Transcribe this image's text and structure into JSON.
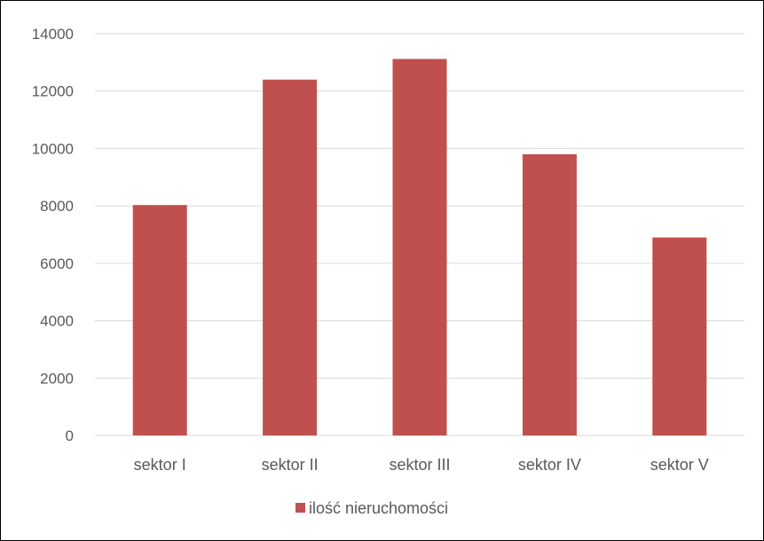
{
  "chart_data": {
    "type": "bar",
    "categories": [
      "sektor I",
      "sektor II",
      "sektor III",
      "sektor IV",
      "sektor V"
    ],
    "series": [
      {
        "name": "ilość nieruchomości",
        "values": [
          8030,
          12400,
          13120,
          9800,
          6900
        ]
      }
    ],
    "yticks": [
      "0",
      "2000",
      "4000",
      "6000",
      "8000",
      "10000",
      "12000",
      "14000"
    ],
    "ylim": [
      0,
      14000
    ],
    "grid": true,
    "legend": "bottom",
    "colors": {
      "bar": "#C0504D",
      "grid": "#D9D9D9",
      "text": "#595959"
    }
  }
}
